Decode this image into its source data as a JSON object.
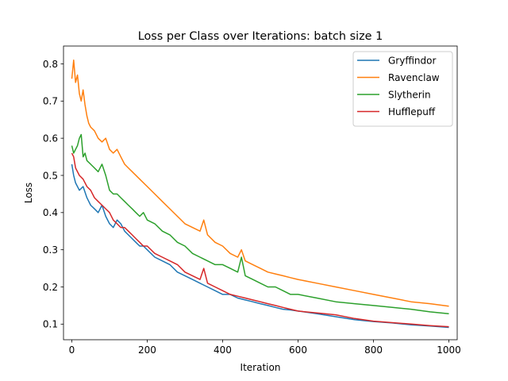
{
  "chart_data": {
    "type": "line",
    "title": "Loss per Class over Iterations: batch size 1",
    "xlabel": "Iteration",
    "ylabel": "Loss",
    "xlim": [
      -22,
      1022
    ],
    "ylim": [
      0.058,
      0.848
    ],
    "xticks": [
      0,
      200,
      400,
      600,
      800,
      1000
    ],
    "yticks": [
      0.1,
      0.2,
      0.3,
      0.4,
      0.5,
      0.6,
      0.7,
      0.8
    ],
    "grid": false,
    "legend_position": "top-right",
    "series": [
      {
        "name": "Gryffindor",
        "color": "#1f77b4",
        "x": [
          0,
          5,
          10,
          20,
          30,
          40,
          50,
          60,
          70,
          80,
          90,
          100,
          110,
          120,
          130,
          140,
          150,
          160,
          170,
          180,
          190,
          200,
          220,
          240,
          260,
          280,
          300,
          320,
          340,
          360,
          380,
          400,
          420,
          440,
          460,
          480,
          500,
          520,
          540,
          560,
          580,
          600,
          650,
          700,
          750,
          800,
          850,
          900,
          950,
          1000
        ],
        "y": [
          0.53,
          0.5,
          0.48,
          0.46,
          0.47,
          0.44,
          0.42,
          0.41,
          0.4,
          0.42,
          0.39,
          0.37,
          0.36,
          0.38,
          0.37,
          0.35,
          0.34,
          0.33,
          0.32,
          0.31,
          0.31,
          0.3,
          0.28,
          0.27,
          0.26,
          0.24,
          0.23,
          0.22,
          0.21,
          0.2,
          0.19,
          0.18,
          0.18,
          0.17,
          0.165,
          0.16,
          0.155,
          0.15,
          0.145,
          0.14,
          0.138,
          0.135,
          0.128,
          0.12,
          0.112,
          0.107,
          0.103,
          0.098,
          0.095,
          0.091
        ]
      },
      {
        "name": "Ravenclaw",
        "color": "#ff7f0e",
        "x": [
          0,
          5,
          10,
          15,
          20,
          25,
          30,
          35,
          40,
          45,
          50,
          60,
          70,
          80,
          90,
          100,
          110,
          120,
          130,
          140,
          150,
          160,
          180,
          200,
          220,
          240,
          260,
          280,
          300,
          320,
          340,
          350,
          360,
          380,
          400,
          420,
          440,
          450,
          460,
          480,
          500,
          520,
          540,
          560,
          580,
          600,
          650,
          700,
          750,
          800,
          850,
          900,
          950,
          1000
        ],
        "y": [
          0.76,
          0.81,
          0.75,
          0.77,
          0.72,
          0.7,
          0.73,
          0.69,
          0.66,
          0.64,
          0.63,
          0.62,
          0.6,
          0.59,
          0.6,
          0.57,
          0.56,
          0.57,
          0.55,
          0.53,
          0.52,
          0.51,
          0.49,
          0.47,
          0.45,
          0.43,
          0.41,
          0.39,
          0.37,
          0.36,
          0.35,
          0.38,
          0.34,
          0.32,
          0.31,
          0.29,
          0.28,
          0.3,
          0.27,
          0.26,
          0.25,
          0.24,
          0.235,
          0.23,
          0.225,
          0.22,
          0.21,
          0.2,
          0.19,
          0.18,
          0.17,
          0.16,
          0.155,
          0.148
        ]
      },
      {
        "name": "Slytherin",
        "color": "#2ca02c",
        "x": [
          0,
          5,
          10,
          15,
          20,
          25,
          30,
          35,
          40,
          50,
          60,
          70,
          80,
          90,
          100,
          110,
          120,
          130,
          140,
          150,
          160,
          170,
          180,
          190,
          200,
          220,
          240,
          260,
          280,
          300,
          320,
          340,
          360,
          380,
          400,
          420,
          440,
          450,
          460,
          480,
          500,
          520,
          540,
          560,
          580,
          600,
          650,
          700,
          750,
          800,
          850,
          900,
          950,
          1000
        ],
        "y": [
          0.58,
          0.56,
          0.57,
          0.58,
          0.6,
          0.61,
          0.55,
          0.56,
          0.54,
          0.53,
          0.52,
          0.51,
          0.53,
          0.5,
          0.46,
          0.45,
          0.45,
          0.44,
          0.43,
          0.42,
          0.41,
          0.4,
          0.39,
          0.4,
          0.38,
          0.37,
          0.35,
          0.34,
          0.32,
          0.31,
          0.29,
          0.28,
          0.27,
          0.26,
          0.26,
          0.25,
          0.24,
          0.28,
          0.23,
          0.22,
          0.21,
          0.2,
          0.2,
          0.19,
          0.18,
          0.18,
          0.17,
          0.16,
          0.155,
          0.15,
          0.145,
          0.14,
          0.133,
          0.128
        ]
      },
      {
        "name": "Hufflepuff",
        "color": "#d62728",
        "x": [
          0,
          5,
          10,
          20,
          30,
          40,
          50,
          60,
          70,
          80,
          90,
          100,
          110,
          120,
          130,
          140,
          150,
          160,
          170,
          180,
          190,
          200,
          220,
          240,
          260,
          280,
          300,
          320,
          340,
          350,
          360,
          380,
          400,
          420,
          440,
          460,
          480,
          500,
          520,
          540,
          560,
          580,
          600,
          650,
          700,
          750,
          800,
          850,
          900,
          950,
          1000
        ],
        "y": [
          0.56,
          0.55,
          0.52,
          0.5,
          0.49,
          0.47,
          0.46,
          0.44,
          0.43,
          0.42,
          0.41,
          0.4,
          0.38,
          0.37,
          0.36,
          0.36,
          0.35,
          0.34,
          0.33,
          0.32,
          0.31,
          0.31,
          0.29,
          0.28,
          0.27,
          0.26,
          0.24,
          0.23,
          0.22,
          0.25,
          0.21,
          0.2,
          0.19,
          0.18,
          0.175,
          0.17,
          0.165,
          0.16,
          0.155,
          0.15,
          0.145,
          0.14,
          0.135,
          0.13,
          0.125,
          0.115,
          0.108,
          0.104,
          0.1,
          0.096,
          0.093
        ]
      }
    ]
  }
}
